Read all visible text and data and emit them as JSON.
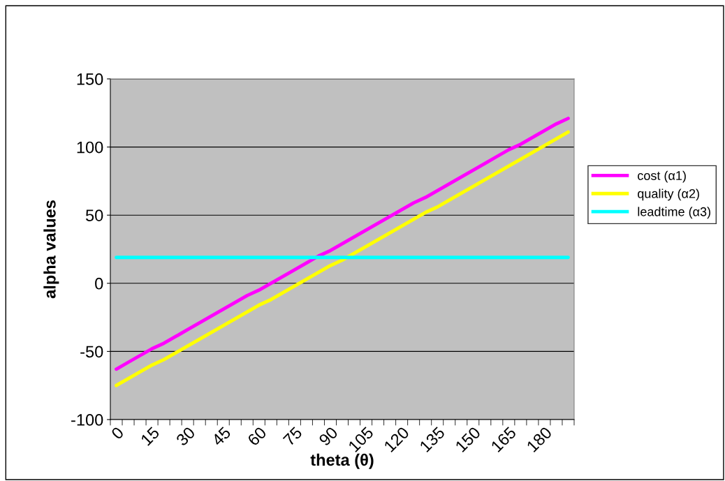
{
  "chart_data": {
    "type": "line",
    "xlabel": "theta (θ)",
    "ylabel": "alpha values",
    "categories": [
      "0",
      null,
      null,
      "15",
      null,
      null,
      "30",
      null,
      null,
      "45",
      null,
      null,
      "60",
      null,
      null,
      "75",
      null,
      null,
      "90",
      null,
      null,
      "105",
      null,
      null,
      "120",
      null,
      null,
      "135",
      null,
      null,
      "150",
      null,
      null,
      "165",
      null,
      null,
      "180",
      null,
      null
    ],
    "series": [
      {
        "name": "cost (α1)",
        "color": "#ff00ff",
        "values": [
          -63,
          -58,
          -53,
          -48,
          -44,
          -39,
          -34,
          -29,
          -24,
          -19,
          -14,
          -9,
          -5,
          0,
          5,
          10,
          15,
          20,
          24,
          29,
          34,
          39,
          44,
          49,
          54,
          59,
          63,
          68,
          73,
          78,
          83,
          88,
          93,
          98,
          102,
          107,
          112,
          117,
          121
        ]
      },
      {
        "name": "quality (α2)",
        "color": "#ffff00",
        "values": [
          -75,
          -70,
          -65,
          -60,
          -56,
          -51,
          -46,
          -41,
          -36,
          -31,
          -26,
          -21,
          -16,
          -12,
          -7,
          -2,
          3,
          8,
          13,
          17,
          22,
          27,
          32,
          37,
          42,
          47,
          52,
          56,
          61,
          66,
          71,
          76,
          81,
          86,
          91,
          96,
          101,
          106,
          111
        ]
      },
      {
        "name": "leadtime (α3)",
        "color": "#00ffff",
        "values": [
          19,
          19,
          19,
          19,
          19,
          19,
          19,
          19,
          19,
          19,
          19,
          19,
          19,
          19,
          19,
          19,
          19,
          19,
          19,
          19,
          19,
          19,
          19,
          19,
          19,
          19,
          19,
          19,
          19,
          19,
          19,
          19,
          19,
          19,
          19,
          19,
          19,
          19,
          19
        ]
      }
    ],
    "ylim": [
      -100,
      150
    ],
    "yticks": [
      -100,
      -50,
      0,
      50,
      100,
      150
    ],
    "grid": "y",
    "legend": "right",
    "marker": "none",
    "line_style": "solid"
  }
}
